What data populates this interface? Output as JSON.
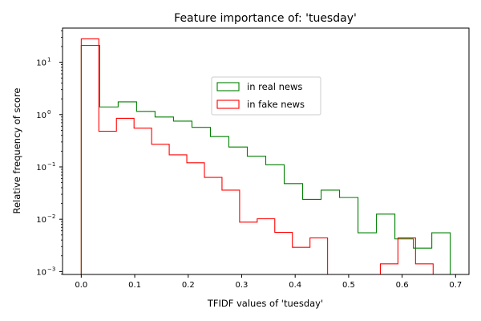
{
  "chart_data": {
    "type": "histogram",
    "title": "Feature importance of: 'tuesday'",
    "xlabel": "TFIDF values of 'tuesday'",
    "ylabel": "Relative frequency of score",
    "yscale": "log",
    "xlim": [
      -0.035,
      0.725
    ],
    "ylim": [
      0.00088,
      45
    ],
    "xticks": [
      0.0,
      0.1,
      0.2,
      0.3,
      0.4,
      0.5,
      0.6,
      0.7
    ],
    "xtick_labels": [
      "0.0",
      "0.1",
      "0.2",
      "0.3",
      "0.4",
      "0.5",
      "0.6",
      "0.7"
    ],
    "yticks": [
      0.001,
      0.01,
      0.1,
      1,
      10
    ],
    "ytick_labels": [
      "10",
      "10",
      "10",
      "10",
      "10"
    ],
    "ytick_exponents": [
      "−3",
      "−2",
      "−1",
      "0",
      "1"
    ],
    "legend_position": "upper-center",
    "grid": false,
    "series": [
      {
        "name": "in real news",
        "color": "#008000",
        "edges": [
          0.0,
          0.0345,
          0.069,
          0.1035,
          0.138,
          0.1725,
          0.207,
          0.2415,
          0.276,
          0.3105,
          0.345,
          0.3795,
          0.414,
          0.4485,
          0.483,
          0.5175,
          0.552,
          0.5865,
          0.621,
          0.6555,
          0.69
        ],
        "values": [
          21,
          1.4,
          1.75,
          1.15,
          0.9,
          0.75,
          0.57,
          0.38,
          0.24,
          0.16,
          0.11,
          0.048,
          0.024,
          0.036,
          0.026,
          0.0055,
          0.0125,
          0.0042,
          0.0028,
          0.0055
        ]
      },
      {
        "name": "in fake news",
        "color": "#ff0000",
        "edges": [
          0.0,
          0.0329,
          0.0658,
          0.0987,
          0.1316,
          0.1645,
          0.1974,
          0.2303,
          0.2632,
          0.2961,
          0.329,
          0.3619,
          0.3948,
          0.4277,
          0.4606,
          0.4935,
          0.5264,
          0.5593,
          0.5922,
          0.6251,
          0.658
        ],
        "values": [
          28,
          0.48,
          0.85,
          0.55,
          0.27,
          0.17,
          0.12,
          0.063,
          0.036,
          0.0088,
          0.0102,
          0.0056,
          0.0029,
          0.0044,
          0,
          0,
          0,
          0.0014,
          0.0044,
          0.0014
        ]
      }
    ]
  }
}
